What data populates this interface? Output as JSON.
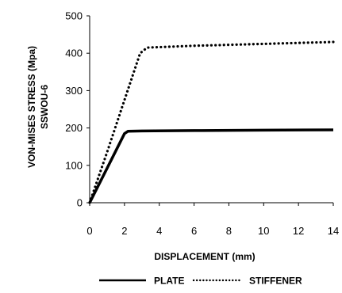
{
  "chart_data": {
    "type": "line",
    "title": "",
    "xlabel": "DISPLACEMENT (mm)",
    "ylabel": [
      "VON-MISES STRESS (Mpa)",
      "SSWOU-6"
    ],
    "xlim": [
      0,
      14
    ],
    "ylim": [
      0,
      500
    ],
    "xticks": [
      0,
      2,
      4,
      6,
      8,
      10,
      12,
      14
    ],
    "yticks": [
      0,
      100,
      200,
      300,
      400,
      500
    ],
    "grid": false,
    "legend_position": "bottom",
    "series": [
      {
        "name": "PLATE",
        "style": "solid",
        "color": "#000000",
        "points": [
          [
            0,
            0
          ],
          [
            1.0,
            92
          ],
          [
            2.0,
            185
          ],
          [
            2.2,
            191
          ],
          [
            3,
            192
          ],
          [
            6,
            193
          ],
          [
            10,
            194
          ],
          [
            14,
            195
          ]
        ]
      },
      {
        "name": "STIFFENER",
        "style": "dotted",
        "color": "#000000",
        "points": [
          [
            0,
            0
          ],
          [
            1.0,
            135
          ],
          [
            2.0,
            275
          ],
          [
            2.9,
            400
          ],
          [
            3.3,
            415
          ],
          [
            6,
            420
          ],
          [
            10,
            425
          ],
          [
            14,
            430
          ]
        ]
      }
    ]
  }
}
